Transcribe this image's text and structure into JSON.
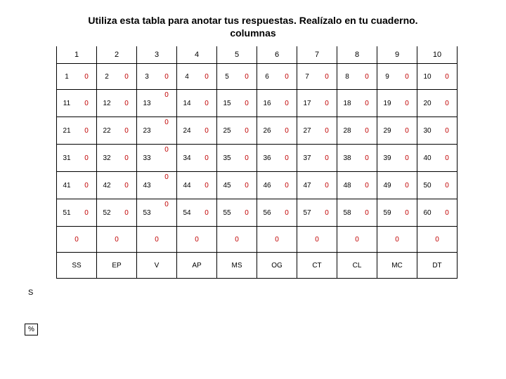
{
  "title_line1": "Utiliza esta tabla para anotar tus respuestas. Realízalo en tu cuaderno.",
  "title_line2": "columnas",
  "col_headers": [
    "1",
    "2",
    "3",
    "4",
    "5",
    "6",
    "7",
    "8",
    "9",
    "10"
  ],
  "rows": [
    {
      "nums": [
        "1",
        "2",
        "3",
        "4",
        "5",
        "6",
        "7",
        "8",
        "9",
        "10"
      ],
      "z": "0"
    },
    {
      "nums": [
        "11",
        "12",
        "13",
        "14",
        "15",
        "16",
        "17",
        "18",
        "19",
        "20"
      ],
      "z": "0"
    },
    {
      "nums": [
        "21",
        "22",
        "23",
        "24",
        "25",
        "26",
        "27",
        "28",
        "29",
        "30"
      ],
      "z": "0"
    },
    {
      "nums": [
        "31",
        "32",
        "33",
        "34",
        "35",
        "36",
        "37",
        "38",
        "39",
        "40"
      ],
      "z": "0"
    },
    {
      "nums": [
        "41",
        "42",
        "43",
        "44",
        "45",
        "46",
        "47",
        "48",
        "49",
        "50"
      ],
      "z": "0"
    },
    {
      "nums": [
        "51",
        "52",
        "53",
        "54",
        "55",
        "56",
        "57",
        "58",
        "59",
        "60"
      ],
      "z": "0"
    }
  ],
  "s_label": "S",
  "s_values": [
    "0",
    "0",
    "0",
    "0",
    "0",
    "0",
    "0",
    "0",
    "0",
    "0"
  ],
  "pct_label": "%",
  "labels": [
    "SS",
    "EP",
    "V",
    "AP",
    "MS",
    "OG",
    "CT",
    "CL",
    "MC",
    "DT"
  ],
  "colors": {
    "zero": "#c00000",
    "text": "#000000",
    "border": "#000000",
    "bg": "#ffffff"
  }
}
